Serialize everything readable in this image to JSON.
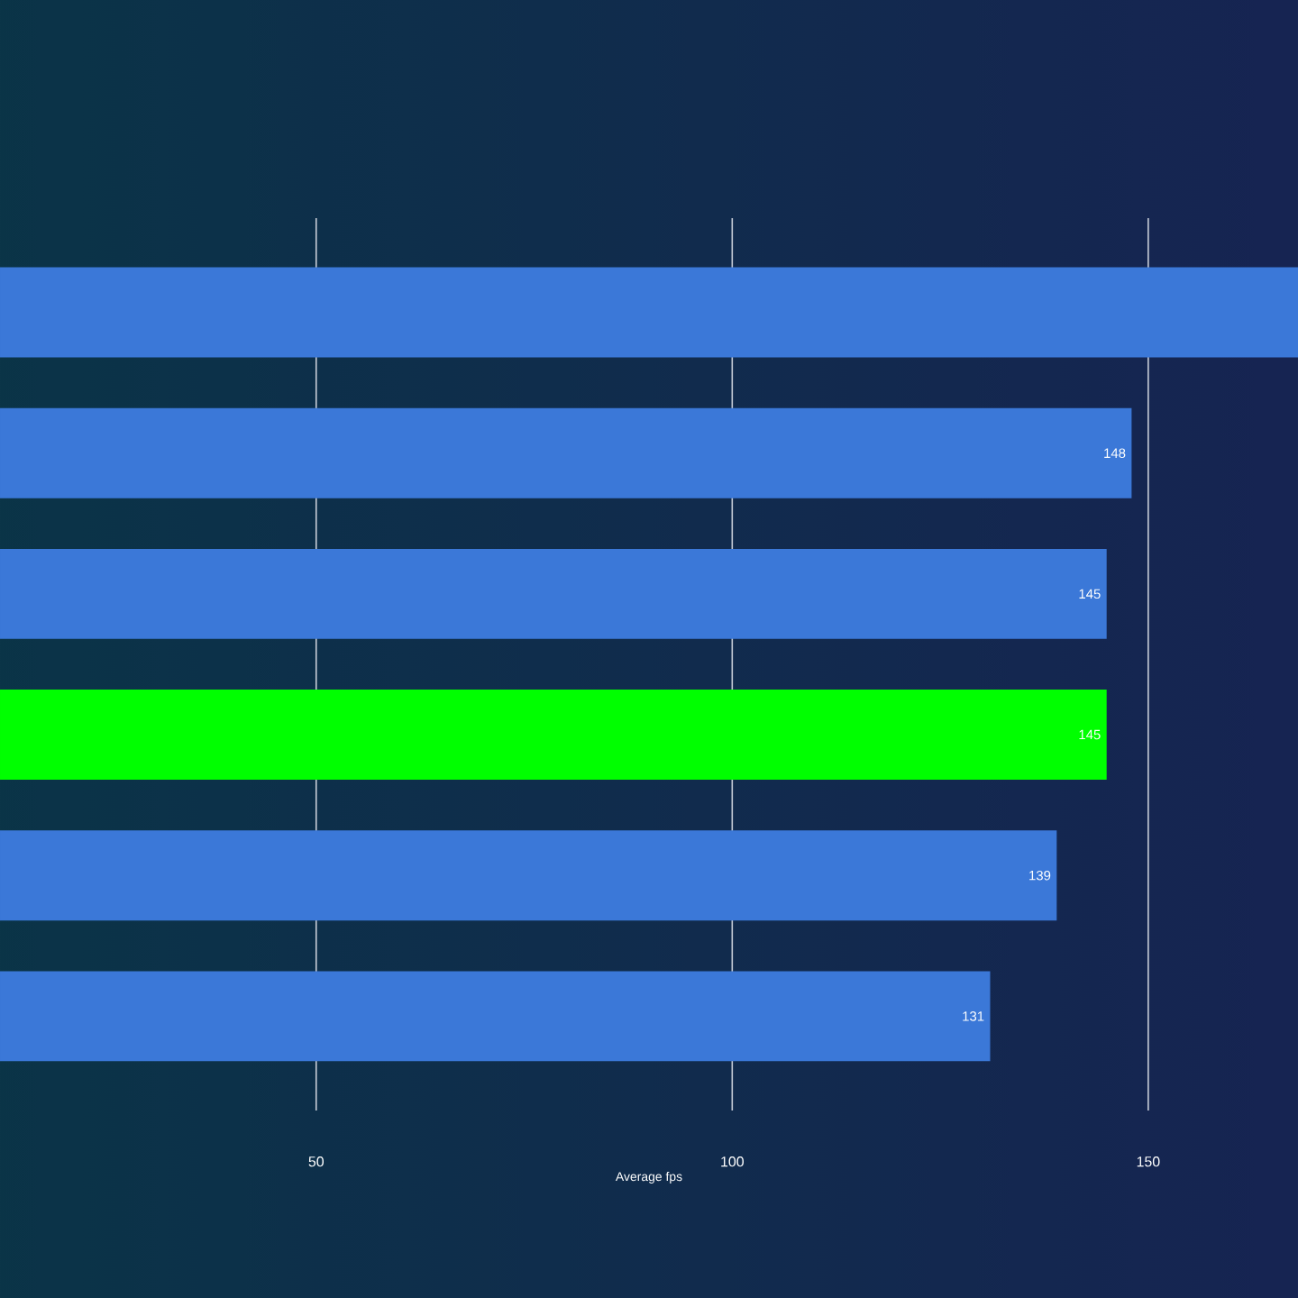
{
  "chart_data": {
    "type": "bar",
    "orientation": "horizontal",
    "xlabel": "Average fps",
    "categories": [
      null,
      null,
      null,
      null,
      null,
      null
    ],
    "values": [
      168,
      148,
      145,
      145,
      139,
      131
    ],
    "colors": [
      "#3b78d8",
      "#3b78d8",
      "#3b78d8",
      "#00ff00",
      "#3b78d8",
      "#3b78d8"
    ],
    "value_labels": [
      null,
      "148",
      "145",
      "145",
      "139",
      "131"
    ],
    "xlim": [
      12,
      168
    ],
    "xticks": [
      50,
      100,
      150
    ],
    "grid": "x"
  }
}
